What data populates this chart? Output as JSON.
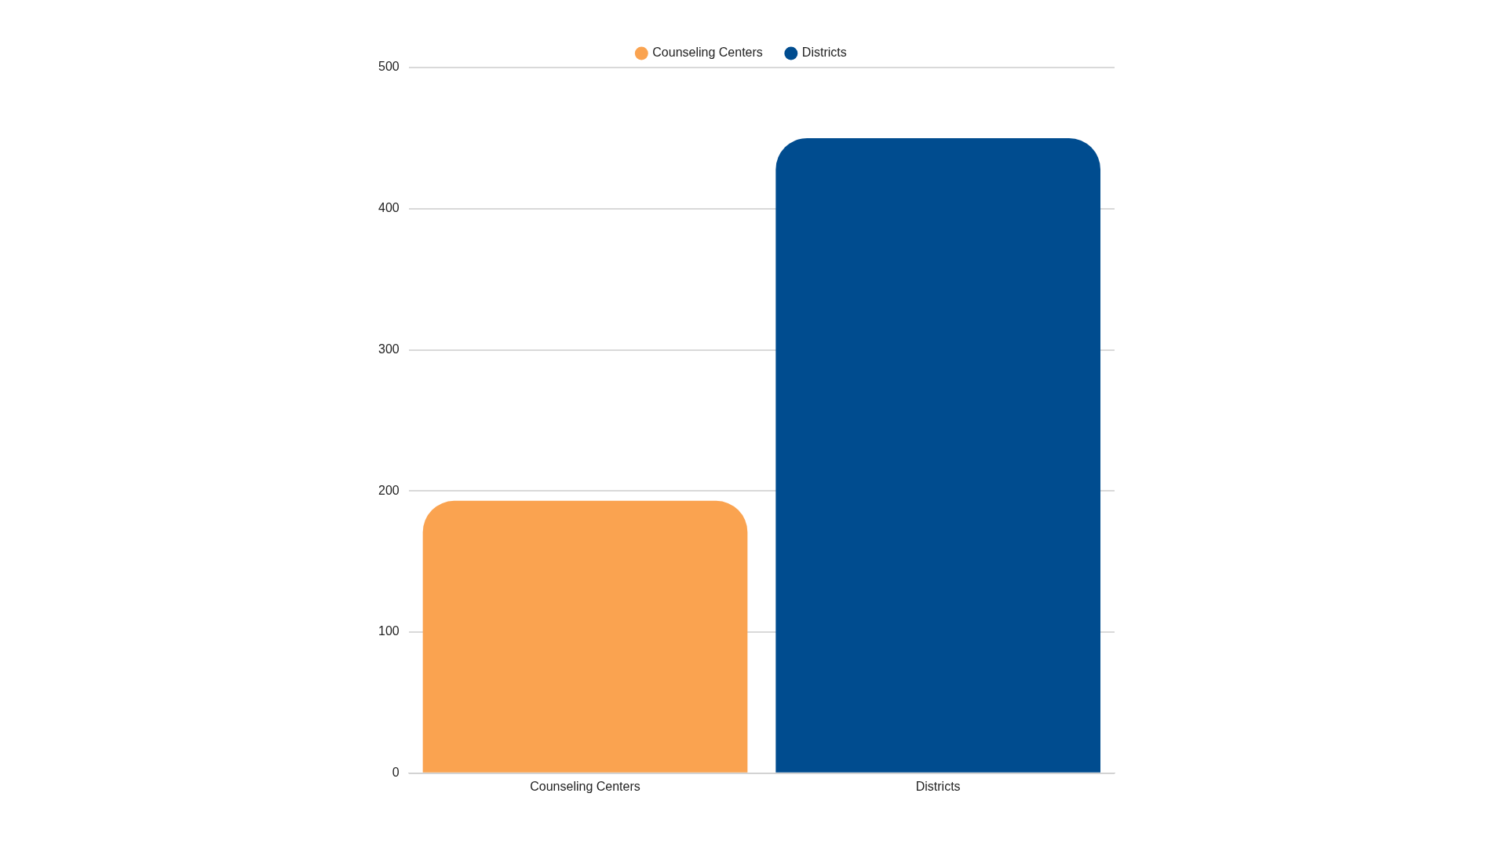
{
  "chart_data": {
    "type": "bar",
    "categories": [
      "Counseling Centers",
      "Districts"
    ],
    "series": [
      {
        "name": "Counseling Centers",
        "color": "#faa350",
        "values": [
          193,
          null
        ]
      },
      {
        "name": "Districts",
        "color": "#004c8f",
        "values": [
          null,
          450
        ]
      }
    ],
    "ylim": [
      0,
      500
    ],
    "yticks": [
      0,
      100,
      200,
      300,
      400,
      500
    ],
    "grid": "y",
    "legend": "top"
  }
}
